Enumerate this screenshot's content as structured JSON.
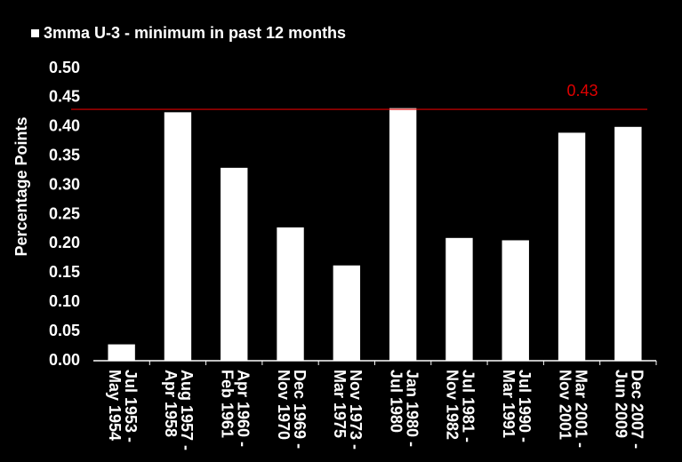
{
  "chart_data": {
    "type": "bar",
    "legend_label": "3mma U-3 - minimum in past 12 months",
    "y_label": "Percentage Points",
    "categories": [
      [
        "Jul 1953 -",
        "May 1954"
      ],
      [
        "Aug 1957 -",
        "Apr 1958"
      ],
      [
        "Apr 1960 -",
        "Feb 1961"
      ],
      [
        "Dec 1969 -",
        "Nov 1970"
      ],
      [
        "Nov 1973 -",
        "Mar 1975"
      ],
      [
        "Jan 1980 -",
        "Jul 1980"
      ],
      [
        "Jul 1981 -",
        "Nov 1982"
      ],
      [
        "Jul 1990 -",
        "Mar 1991"
      ],
      [
        "Mar 2001 -",
        "Nov 2001"
      ],
      [
        "Dec 2007 -",
        "Jun 2009"
      ]
    ],
    "values": [
      0.028,
      0.425,
      0.33,
      0.228,
      0.163,
      0.432,
      0.21,
      0.206,
      0.39,
      0.4
    ],
    "color": "#ffffff",
    "ylim": [
      0,
      0.5
    ],
    "yticks": [
      {
        "value": 0,
        "label": "0.00"
      },
      {
        "value": 0.05,
        "label": "0.05"
      },
      {
        "value": 0.1,
        "label": "0.10"
      },
      {
        "value": 0.15,
        "label": "0.15"
      },
      {
        "value": 0.2,
        "label": "0.20"
      },
      {
        "value": 0.25,
        "label": "0.25"
      },
      {
        "value": 0.3,
        "label": "0.30"
      },
      {
        "value": 0.35,
        "label": "0.35"
      },
      {
        "value": 0.4,
        "label": "0.40"
      },
      {
        "value": 0.45,
        "label": "0.45"
      },
      {
        "value": 0.5,
        "label": "0.50"
      }
    ],
    "reference_line": {
      "value": 0.43,
      "color": "#e00000"
    }
  }
}
